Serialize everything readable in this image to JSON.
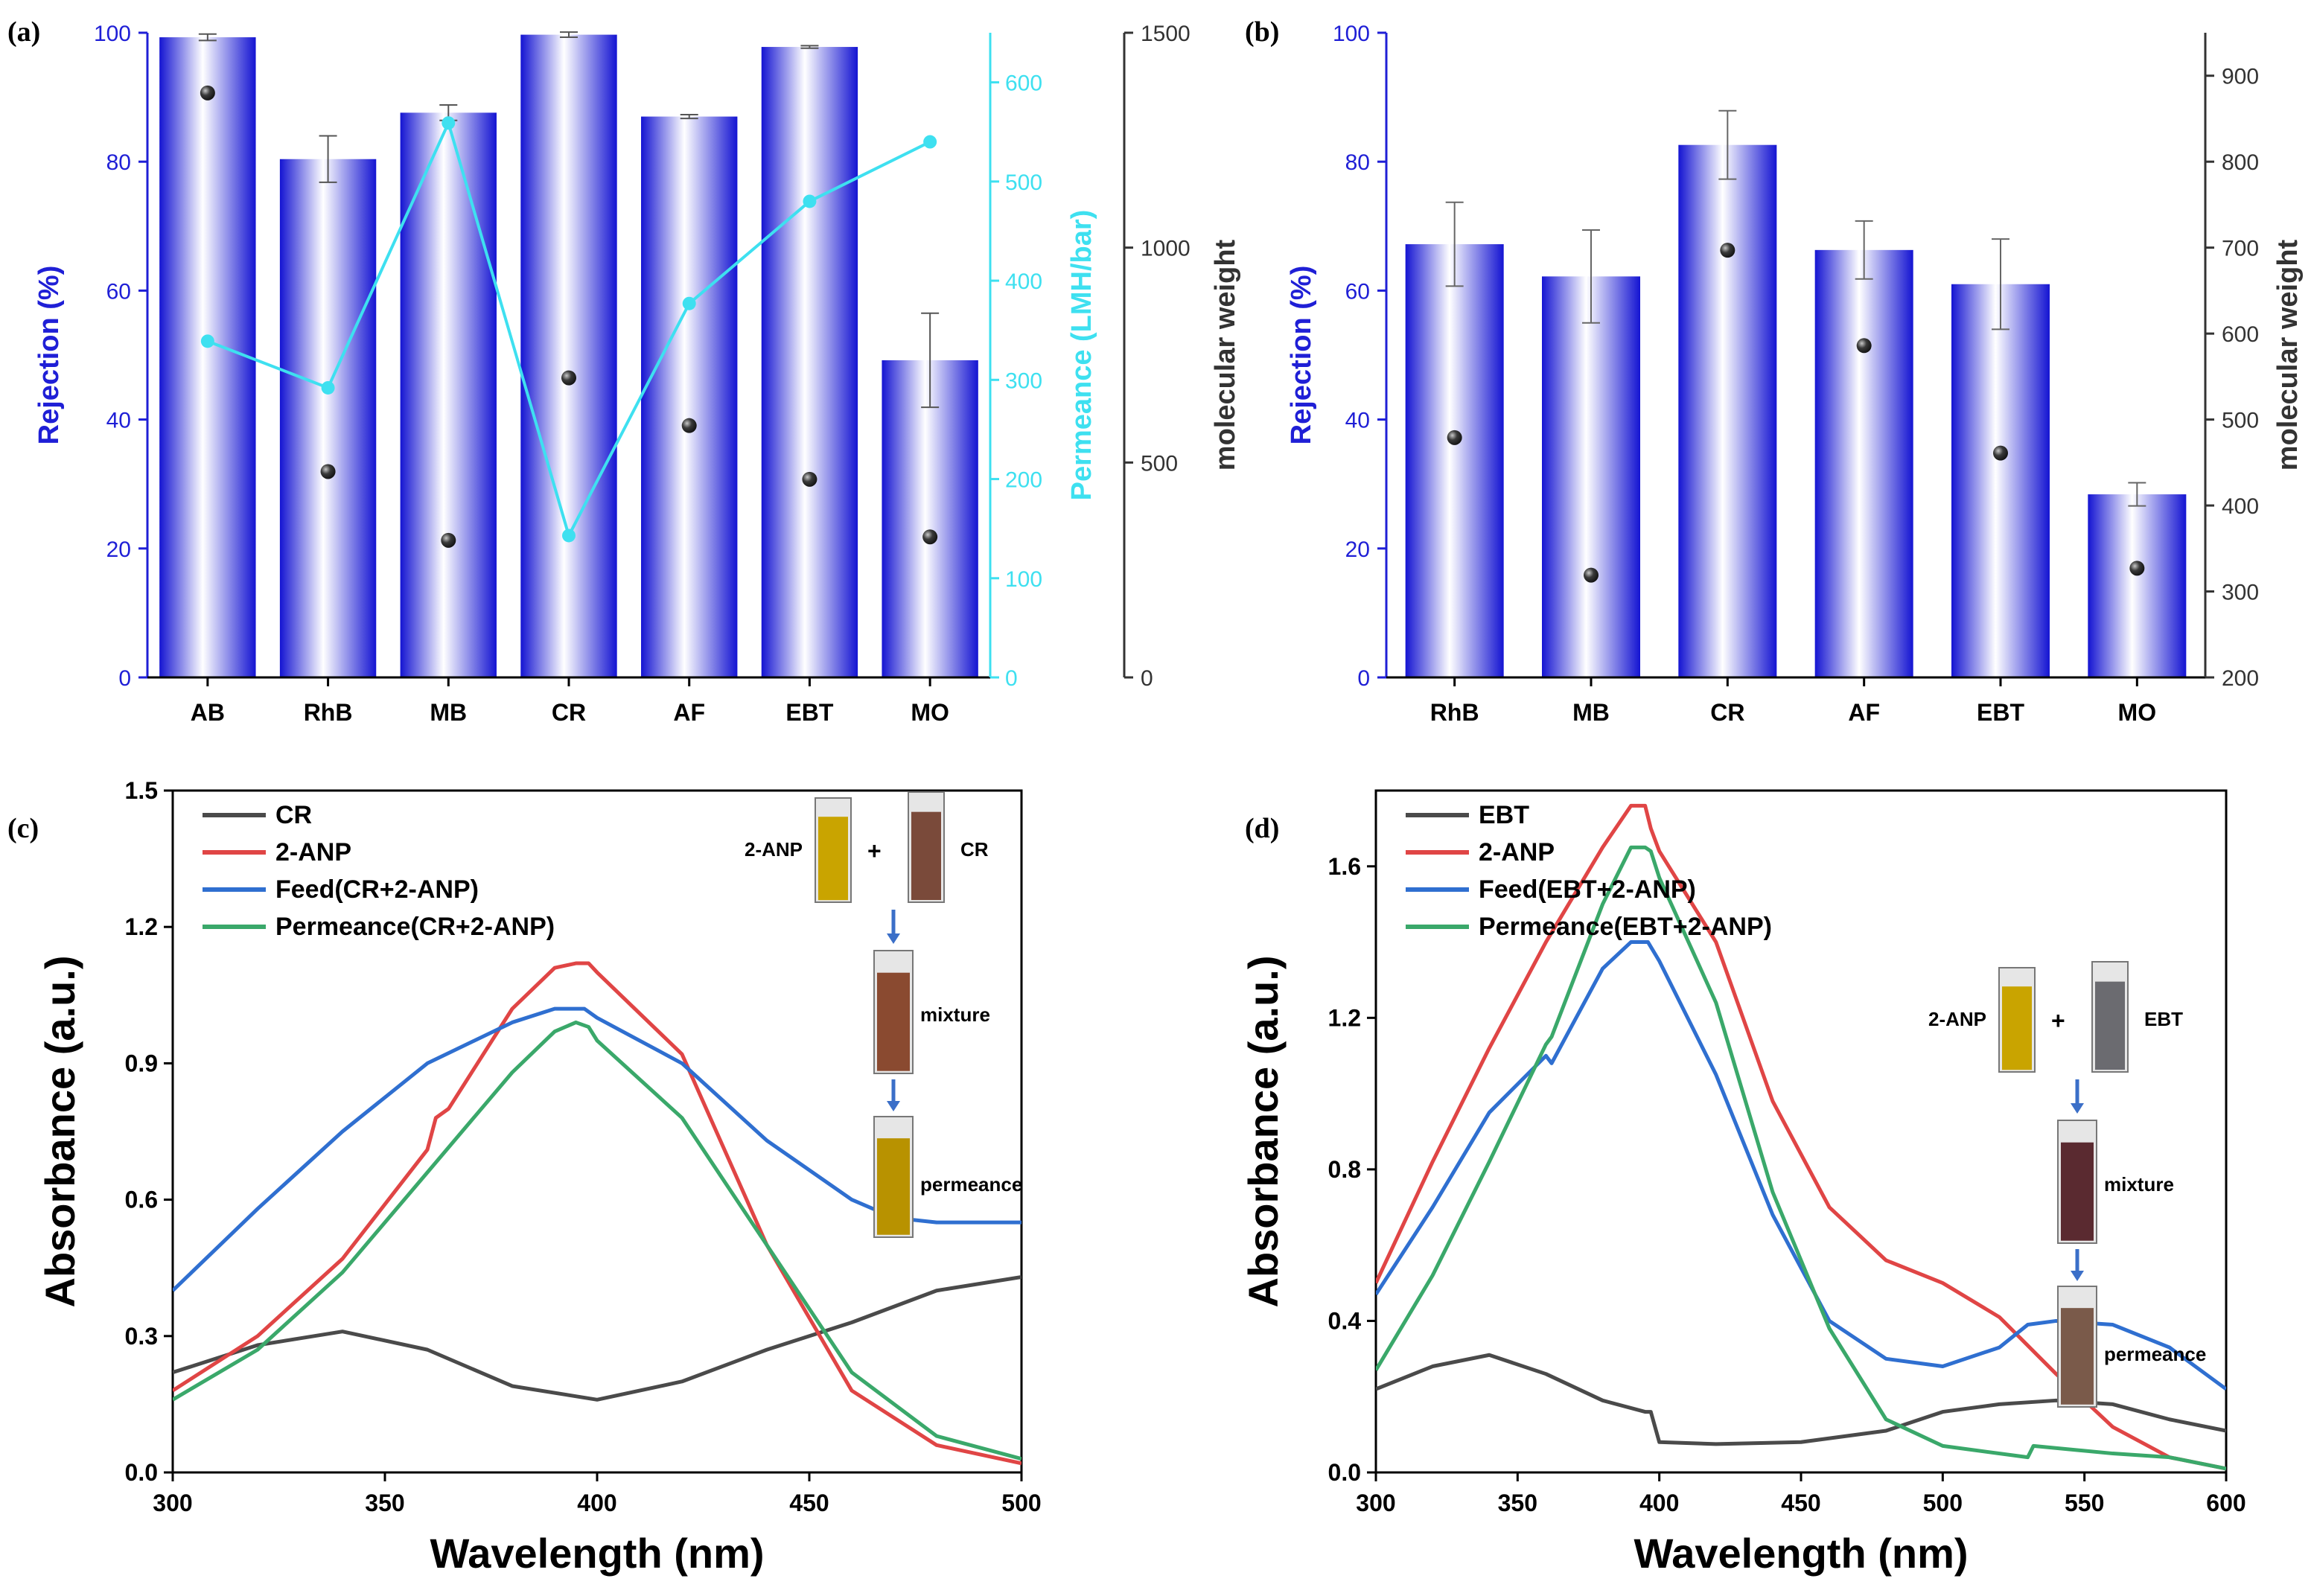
{
  "colors": {
    "blue": "#1f1fd6",
    "cyan": "#3ee0f0",
    "dark": "#333333",
    "red": "#e04545",
    "lineblue": "#2f6fd0",
    "green": "#3aa86a",
    "gray": "#4a4a4a"
  },
  "chart_data": [
    {
      "panel": "(a)",
      "type": "bar",
      "categories": [
        "AB",
        "RhB",
        "MB",
        "CR",
        "AF",
        "EBT",
        "MO"
      ],
      "series": [
        {
          "name": "Rejection (%)",
          "axis": "left",
          "type": "bar",
          "values": [
            99.3,
            80.4,
            87.6,
            99.7,
            87.0,
            97.8,
            49.2
          ],
          "errors": [
            0.5,
            3.6,
            1.2,
            0.4,
            0.3,
            0.2,
            7.3
          ]
        },
        {
          "name": "Permeance (LMH/bar)",
          "axis": "right-inner",
          "type": "line",
          "values": [
            339,
            292,
            559,
            143,
            377,
            480,
            540
          ]
        },
        {
          "name": "molecular weight",
          "axis": "right-outer",
          "type": "scatter",
          "values": [
            1360,
            479,
            319,
            697,
            586,
            461,
            327
          ]
        }
      ],
      "ylabel_left": "Rejection (%)",
      "ylim_left": [
        0,
        100
      ],
      "yticks_left": [
        0,
        20,
        40,
        60,
        80,
        100
      ],
      "ylabel_right1": "Permeance (LMH/bar)",
      "ylim_right1": [
        0,
        650
      ],
      "yticks_right1": [
        0,
        100,
        200,
        300,
        400,
        500,
        600
      ],
      "ylabel_right2": "molecular weight",
      "ylim_right2": [
        0,
        1500
      ],
      "yticks_right2": [
        0,
        500,
        1000,
        1500
      ]
    },
    {
      "panel": "(b)",
      "type": "bar",
      "categories": [
        "RhB",
        "MB",
        "CR",
        "AF",
        "EBT",
        "MO"
      ],
      "series": [
        {
          "name": "Rejection (%)",
          "axis": "left",
          "type": "bar",
          "values": [
            67.2,
            62.2,
            82.6,
            66.3,
            61.0,
            28.4
          ],
          "errors": [
            6.5,
            7.2,
            5.3,
            4.5,
            7.0,
            1.8
          ]
        },
        {
          "name": "molecular weight",
          "axis": "right",
          "type": "scatter",
          "values": [
            479,
            319,
            697,
            586,
            461,
            327
          ]
        }
      ],
      "ylabel_left": "Rejection (%)",
      "ylim_left": [
        0,
        100
      ],
      "yticks_left": [
        0,
        20,
        40,
        60,
        80,
        100
      ],
      "ylabel_right": "molecular weight",
      "ylim_right": [
        200,
        950
      ],
      "yticks_right": [
        200,
        300,
        400,
        500,
        600,
        700,
        800,
        900
      ]
    },
    {
      "panel": "(c)",
      "type": "line",
      "xlabel": "Wavelength (nm)",
      "ylabel": "Absorbance (a.u.)",
      "xlim": [
        300,
        500
      ],
      "ylim": [
        0,
        1.5
      ],
      "xticks": [
        300,
        350,
        400,
        450,
        500
      ],
      "yticks": [
        "0.0",
        "0.3",
        "0.6",
        "0.9",
        "1.2",
        "1.5"
      ],
      "series": [
        {
          "name": "CR",
          "x": [
            300,
            320,
            340,
            360,
            380,
            400,
            420,
            440,
            460,
            480,
            500
          ],
          "y": [
            0.22,
            0.28,
            0.31,
            0.27,
            0.19,
            0.16,
            0.2,
            0.27,
            0.33,
            0.4,
            0.43
          ]
        },
        {
          "name": "2-ANP",
          "x": [
            300,
            320,
            340,
            360,
            362,
            365,
            380,
            390,
            395,
            398,
            400,
            420,
            440,
            460,
            480,
            500
          ],
          "y": [
            0.18,
            0.3,
            0.47,
            0.71,
            0.78,
            0.8,
            1.02,
            1.11,
            1.12,
            1.12,
            1.1,
            0.92,
            0.5,
            0.18,
            0.06,
            0.02
          ]
        },
        {
          "name": "Feed(CR+2-ANP)",
          "x": [
            300,
            320,
            340,
            360,
            380,
            390,
            397,
            400,
            420,
            440,
            460,
            470,
            480,
            500
          ],
          "y": [
            0.4,
            0.58,
            0.75,
            0.9,
            0.99,
            1.02,
            1.02,
            1.0,
            0.9,
            0.73,
            0.6,
            0.56,
            0.55,
            0.55
          ]
        },
        {
          "name": "Permeance(CR+2-ANP)",
          "x": [
            300,
            320,
            340,
            360,
            380,
            390,
            395,
            398,
            400,
            420,
            440,
            460,
            480,
            500
          ],
          "y": [
            0.16,
            0.27,
            0.44,
            0.66,
            0.88,
            0.97,
            0.99,
            0.98,
            0.95,
            0.78,
            0.5,
            0.22,
            0.08,
            0.03
          ]
        }
      ],
      "inset": {
        "label_a": "2-ANP",
        "plus": "+",
        "label_b": "CR",
        "mixture": "mixture",
        "permeance": "permeance"
      }
    },
    {
      "panel": "(d)",
      "type": "line",
      "xlabel": "Wavelength (nm)",
      "ylabel": "Absorbance (a.u.)",
      "xlim": [
        300,
        600
      ],
      "ylim": [
        0,
        1.8
      ],
      "xticks": [
        300,
        350,
        400,
        450,
        500,
        550,
        600
      ],
      "yticks": [
        "0.0",
        "0.4",
        "0.8",
        "1.2",
        "1.6"
      ],
      "series": [
        {
          "name": "EBT",
          "x": [
            300,
            320,
            340,
            360,
            380,
            395,
            397,
            400,
            420,
            450,
            480,
            500,
            520,
            540,
            560,
            580,
            600
          ],
          "y": [
            0.22,
            0.28,
            0.31,
            0.26,
            0.19,
            0.16,
            0.16,
            0.08,
            0.075,
            0.08,
            0.11,
            0.16,
            0.18,
            0.19,
            0.18,
            0.14,
            0.11
          ]
        },
        {
          "name": "2-ANP",
          "x": [
            300,
            320,
            340,
            360,
            380,
            390,
            395,
            397,
            400,
            420,
            440,
            460,
            480,
            500,
            520,
            540,
            560,
            580,
            600
          ],
          "y": [
            0.5,
            0.82,
            1.12,
            1.4,
            1.65,
            1.76,
            1.76,
            1.7,
            1.64,
            1.4,
            0.98,
            0.7,
            0.56,
            0.5,
            0.41,
            0.26,
            0.12,
            0.04,
            0.01
          ]
        },
        {
          "name": "Feed(EBT+2-ANP)",
          "x": [
            300,
            320,
            340,
            360,
            362,
            380,
            390,
            396,
            400,
            420,
            440,
            460,
            480,
            500,
            520,
            530,
            540,
            560,
            580,
            600
          ],
          "y": [
            0.47,
            0.7,
            0.95,
            1.1,
            1.08,
            1.33,
            1.4,
            1.4,
            1.35,
            1.05,
            0.68,
            0.4,
            0.3,
            0.28,
            0.33,
            0.39,
            0.4,
            0.39,
            0.33,
            0.22
          ]
        },
        {
          "name": "Permeance(EBT+2-ANP)",
          "x": [
            300,
            320,
            340,
            360,
            362,
            380,
            390,
            395,
            397,
            400,
            420,
            440,
            460,
            480,
            500,
            530,
            532,
            560,
            580,
            600
          ],
          "y": [
            0.27,
            0.52,
            0.82,
            1.13,
            1.15,
            1.5,
            1.65,
            1.65,
            1.64,
            1.57,
            1.24,
            0.74,
            0.38,
            0.14,
            0.07,
            0.04,
            0.07,
            0.05,
            0.04,
            0.01
          ]
        }
      ],
      "inset": {
        "label_a": "2-ANP",
        "plus": "+",
        "label_b": "EBT",
        "mixture": "mixture",
        "permeance": "permeance"
      }
    }
  ]
}
